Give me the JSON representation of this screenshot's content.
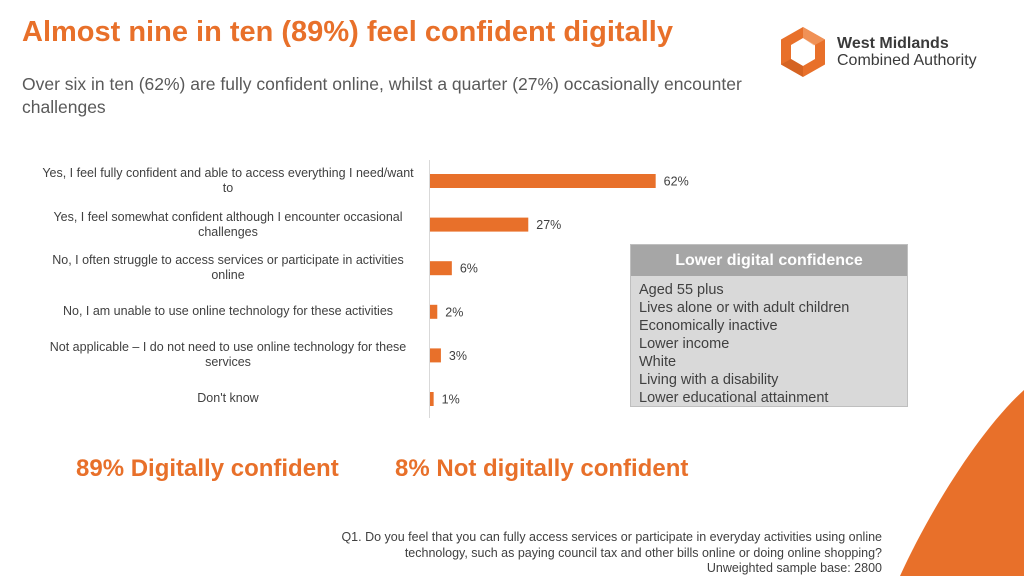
{
  "header": {
    "title": "Almost nine in ten (89%) feel confident digitally",
    "subtitle": "Over six in ten (62%) are fully confident online, whilst a quarter (27%) occasionally encounter challenges"
  },
  "logo": {
    "line1": "West Midlands",
    "line2": "Combined Authority",
    "icon": "hexagon-ring-logo-icon"
  },
  "colors": {
    "accent": "#E8702A",
    "panel_header": "#A6A6A6",
    "panel_body": "#D9D9D9"
  },
  "chart_data": {
    "type": "bar",
    "orientation": "horizontal",
    "categories": [
      "Yes, I feel fully confident and able to access everything I need/want to",
      "Yes, I feel somewhat confident although I encounter occasional challenges",
      "No, I often struggle to access services or participate in activities online",
      "No, I am unable to use online technology for these activities",
      "Not applicable – I do not need to use online technology for these services",
      "Don't know"
    ],
    "values": [
      62,
      27,
      6,
      2,
      3,
      1
    ],
    "value_labels": [
      "62%",
      "27%",
      "6%",
      "2%",
      "3%",
      "1%"
    ],
    "units": "%",
    "xlim": [
      0,
      100
    ],
    "grid": false,
    "series_color": "#E8702A"
  },
  "panel": {
    "title": "Lower digital confidence",
    "items": [
      "Aged 55 plus",
      "Lives alone or with adult children",
      "Economically inactive",
      "Lower income",
      "White",
      "Living with a disability",
      "Lower educational attainment"
    ]
  },
  "summary": {
    "confident": "89% Digitally confident",
    "not_confident": "8% Not digitally confident"
  },
  "footnote": {
    "question": "Q1. Do you feel that you can fully access services or participate in everyday activities using online technology, such as paying council tax and other bills online or doing online shopping?",
    "base": "Unweighted sample base: 2800"
  }
}
